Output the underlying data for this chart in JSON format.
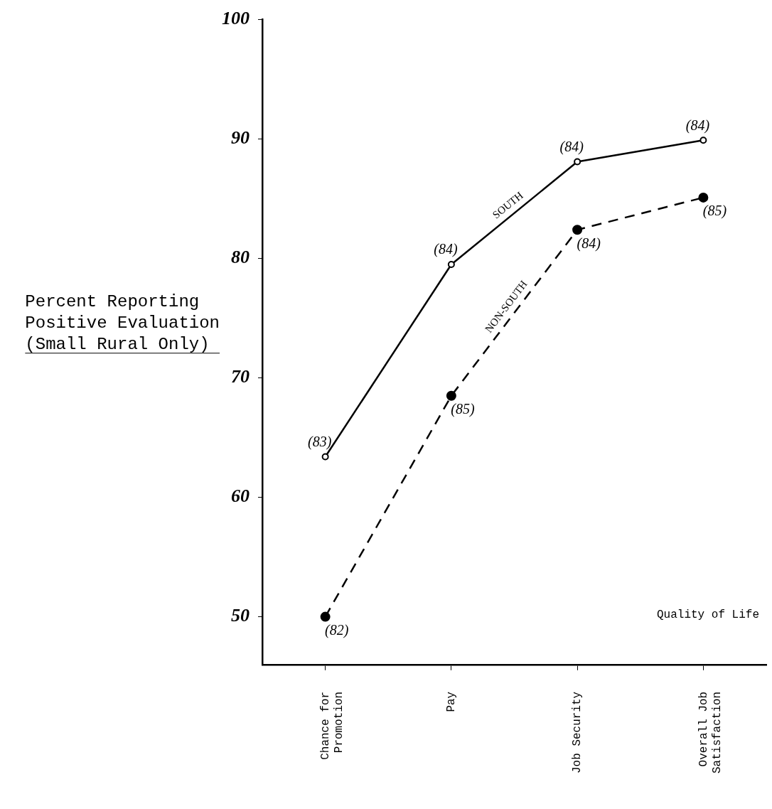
{
  "chart_data": {
    "type": "line",
    "ylabel": "Percent Reporting Positive Evaluation (Small Rural Only)",
    "categories": [
      "Chance for Promotion",
      "Pay",
      "Job Security",
      "Overall Job Satisfaction"
    ],
    "series": [
      {
        "name": "SOUTH",
        "color": "#000000",
        "values": [
          63.4,
          79.5,
          88.1,
          89.9
        ],
        "marker": "circle",
        "line_style": "solid"
      },
      {
        "name": "NON-SOUTH",
        "color": "#000000",
        "values": [
          50,
          68.5,
          82.4,
          85.1
        ],
        "marker": "circle",
        "line_style": "dashed"
      }
    ],
    "ylim": [
      46,
      100
    ],
    "yticks": [
      50,
      60,
      70,
      80,
      90,
      100
    ],
    "grid": false,
    "legend": false,
    "annotations": [
      {
        "text": "(83)",
        "x": "Chance for Promotion",
        "y": 63.4
      },
      {
        "text": "(84)",
        "x": "Pay",
        "y": 79.5
      },
      {
        "text": "(84)",
        "x": "Job Security",
        "y": 88.1
      },
      {
        "text": "(84)",
        "x": "Overall Job Satisfaction",
        "y": 89.9
      },
      {
        "text": "(82)",
        "x": "Chance for Promotion",
        "y": 50
      },
      {
        "text": "(85)",
        "x": "Pay",
        "y": 68.5
      },
      {
        "text": "(84)",
        "x": "Job Security",
        "y": 82.4
      },
      {
        "text": "(85)",
        "x": "Overall Job Satisfaction",
        "y": 85.1
      },
      "Quality of Life"
    ]
  }
}
